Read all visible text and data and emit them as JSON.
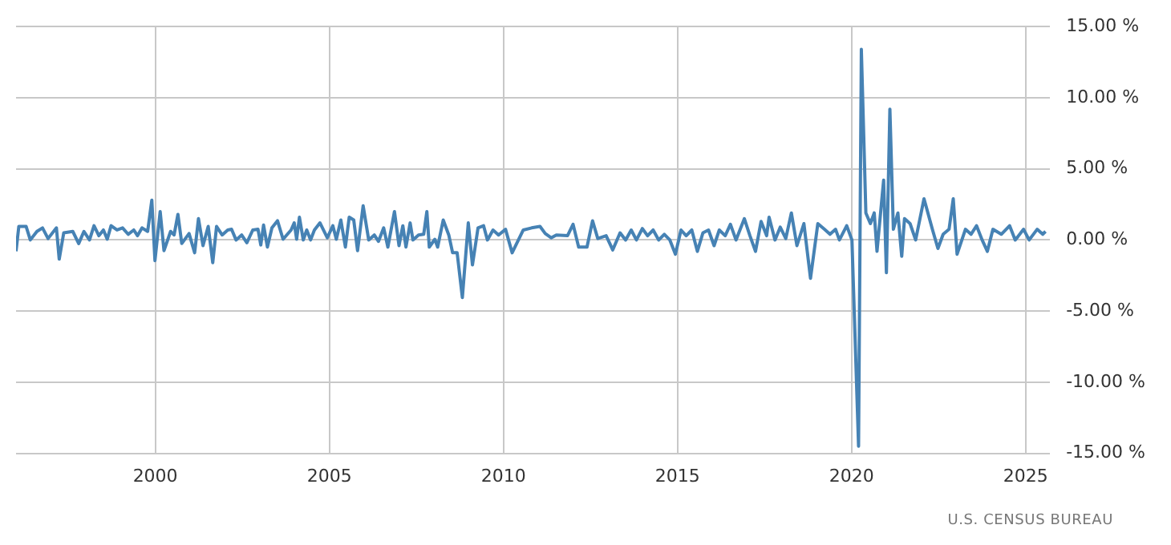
{
  "chart_data": {
    "type": "line",
    "x": [
      1996.0,
      1996.08,
      1996.29,
      1996.41,
      1996.6,
      1996.76,
      1996.92,
      1997.16,
      1997.24,
      1997.37,
      1997.63,
      1997.8,
      1997.95,
      1998.11,
      1998.24,
      1998.38,
      1998.51,
      1998.62,
      1998.73,
      1998.9,
      1999.06,
      1999.22,
      1999.38,
      1999.49,
      1999.62,
      1999.78,
      1999.9,
      1999.99,
      2000.14,
      2000.25,
      2000.44,
      2000.54,
      2000.65,
      2000.76,
      2000.97,
      2001.13,
      2001.24,
      2001.37,
      2001.52,
      2001.65,
      2001.76,
      2001.92,
      2002.08,
      2002.19,
      2002.32,
      2002.48,
      2002.63,
      2002.8,
      2002.95,
      2003.03,
      2003.11,
      2003.22,
      2003.35,
      2003.51,
      2003.67,
      2003.9,
      2003.99,
      2004.06,
      2004.14,
      2004.25,
      2004.35,
      2004.46,
      2004.57,
      2004.73,
      2004.94,
      2005.1,
      2005.2,
      2005.33,
      2005.46,
      2005.57,
      2005.7,
      2005.81,
      2005.97,
      2006.13,
      2006.29,
      2006.41,
      2006.56,
      2006.68,
      2006.87,
      2007.0,
      2007.11,
      2007.2,
      2007.32,
      2007.4,
      2007.56,
      2007.71,
      2007.8,
      2007.87,
      2008.03,
      2008.11,
      2008.27,
      2008.43,
      2008.54,
      2008.67,
      2008.82,
      2008.99,
      2009.11,
      2009.27,
      2009.43,
      2009.54,
      2009.7,
      2009.86,
      2010.06,
      2010.25,
      2010.41,
      2010.57,
      2010.81,
      2011.05,
      2011.2,
      2011.37,
      2011.52,
      2011.84,
      2012.0,
      2012.16,
      2012.4,
      2012.56,
      2012.71,
      2012.95,
      2013.14,
      2013.35,
      2013.51,
      2013.67,
      2013.82,
      2013.99,
      2014.14,
      2014.3,
      2014.46,
      2014.62,
      2014.78,
      2014.94,
      2015.1,
      2015.25,
      2015.41,
      2015.57,
      2015.73,
      2015.89,
      2016.05,
      2016.2,
      2016.37,
      2016.52,
      2016.68,
      2016.92,
      2017.08,
      2017.24,
      2017.4,
      2017.56,
      2017.63,
      2017.8,
      2017.95,
      2018.11,
      2018.27,
      2018.43,
      2018.63,
      2018.82,
      2019.03,
      2019.22,
      2019.38,
      2019.54,
      2019.65,
      2019.86,
      2020.01,
      2020.2,
      2020.28,
      2020.41,
      2020.54,
      2020.65,
      2020.73,
      2020.92,
      2021.0,
      2021.1,
      2021.2,
      2021.33,
      2021.44,
      2021.52,
      2021.68,
      2021.84,
      2022.08,
      2022.32,
      2022.48,
      2022.63,
      2022.8,
      2022.92,
      2023.03,
      2023.27,
      2023.43,
      2023.59,
      2023.75,
      2023.9,
      2024.06,
      2024.3,
      2024.54,
      2024.7,
      2024.94,
      2025.1,
      2025.33,
      2025.49,
      2025.57
    ],
    "series": [
      {
        "color": "#4682b4",
        "values": [
          -0.8,
          0.95,
          0.95,
          0,
          0.6,
          0.85,
          0.1,
          0.85,
          -1.35,
          0.5,
          0.6,
          -0.25,
          0.6,
          0,
          1.0,
          0.3,
          0.7,
          0.05,
          1.0,
          0.7,
          0.85,
          0.4,
          0.7,
          0.3,
          0.85,
          0.6,
          2.8,
          -1.45,
          2.0,
          -0.75,
          0.6,
          0.35,
          1.8,
          -0.25,
          0.45,
          -0.9,
          1.5,
          -0.4,
          0.95,
          -1.6,
          0.95,
          0.35,
          0.7,
          0.75,
          0,
          0.35,
          -0.2,
          0.7,
          0.75,
          -0.35,
          1.05,
          -0.5,
          0.85,
          1.35,
          0.05,
          0.7,
          1.2,
          0.05,
          1.6,
          0,
          0.7,
          0,
          0.7,
          1.2,
          0.15,
          1.0,
          0.05,
          1.4,
          -0.5,
          1.6,
          1.4,
          -0.75,
          2.4,
          0,
          0.35,
          -0.1,
          0.85,
          -0.5,
          2.0,
          -0.4,
          1.0,
          -0.5,
          1.2,
          0,
          0.35,
          0.4,
          2.0,
          -0.5,
          0.05,
          -0.5,
          1.4,
          0.35,
          -0.9,
          -0.9,
          -4.05,
          1.2,
          -1.75,
          0.85,
          1.0,
          0,
          0.7,
          0.35,
          0.75,
          -0.9,
          -0.1,
          0.7,
          0.85,
          0.95,
          0.45,
          0.15,
          0.35,
          0.3,
          1.1,
          -0.5,
          -0.5,
          1.35,
          0.1,
          0.3,
          -0.7,
          0.5,
          0,
          0.7,
          0,
          0.8,
          0.3,
          0.7,
          0,
          0.4,
          0,
          -1.0,
          0.7,
          0.3,
          0.7,
          -0.8,
          0.5,
          0.7,
          -0.4,
          0.7,
          0.3,
          1.1,
          0,
          1.5,
          0.3,
          -0.8,
          1.3,
          0.3,
          1.6,
          0,
          0.9,
          0.1,
          1.9,
          -0.4,
          1.15,
          -2.7,
          1.15,
          0.75,
          0.4,
          0.75,
          0,
          1.0,
          0,
          -14.5,
          13.4,
          1.9,
          1.15,
          1.9,
          -0.8,
          4.2,
          -2.3,
          9.2,
          0.75,
          1.9,
          -1.15,
          1.5,
          1.15,
          0,
          2.9,
          0.75,
          -0.6,
          0.4,
          0.75,
          2.9,
          -1.0,
          0.75,
          0.4,
          1.0,
          0,
          -0.8,
          0.75,
          0.4,
          1.0,
          0,
          0.75,
          0,
          0.75,
          0.4,
          0.6
        ]
      }
    ],
    "xlim": [
      1996.0,
      2025.7
    ],
    "xticks": [
      2000,
      2005,
      2010,
      2015,
      2020,
      2025
    ],
    "ylim": [
      -15,
      15
    ],
    "yticks": [
      {
        "value": -15,
        "label": "-15.00 %"
      },
      {
        "value": -10,
        "label": "-10.00 %"
      },
      {
        "value": -5,
        "label": "-5.00 %"
      },
      {
        "value": 0,
        "label": "0.00 %"
      },
      {
        "value": 5,
        "label": "5.00 %"
      },
      {
        "value": 10,
        "label": "10.00 %"
      },
      {
        "value": 15,
        "label": "15.00 %"
      }
    ],
    "grid": true,
    "legend": false,
    "marker": "none",
    "line_style": "solid",
    "annotations": [
      "U.S. CENSUS BUREAU"
    ]
  }
}
